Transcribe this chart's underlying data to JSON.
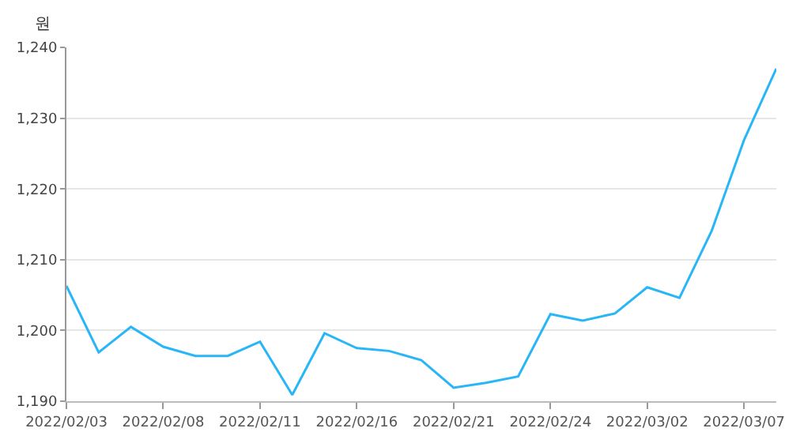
{
  "chart_data": {
    "type": "line",
    "ylabel": "원",
    "categories": [
      "2022/02/03",
      null,
      null,
      "2022/02/08",
      null,
      null,
      "2022/02/11",
      null,
      null,
      "2022/02/16",
      null,
      null,
      "2022/02/21",
      null,
      null,
      "2022/02/24",
      null,
      null,
      "2022/03/02",
      null,
      null,
      "2022/03/07",
      null
    ],
    "series": [
      {
        "color": "#29b6f6",
        "values": [
          1206.3,
          1196.9,
          1200.5,
          1197.7,
          1196.4,
          1196.4,
          1198.4,
          1190.9,
          1199.6,
          1197.5,
          1197.1,
          1195.8,
          1191.9,
          1192.6,
          1193.5,
          1202.3,
          1201.4,
          1202.4,
          1206.1,
          1204.6,
          1214.1,
          1226.9,
          1237.0
        ]
      }
    ],
    "ylim": [
      1190,
      1240
    ],
    "yticks": [
      {
        "value": 1190,
        "label": "1,190"
      },
      {
        "value": 1200,
        "label": "1,200"
      },
      {
        "value": 1210,
        "label": "1,210"
      },
      {
        "value": 1220,
        "label": "1,220"
      },
      {
        "value": 1230,
        "label": "1,230"
      },
      {
        "value": 1240,
        "label": "1,240"
      }
    ],
    "grid": "y",
    "marker": "none",
    "line_style": "solid"
  }
}
